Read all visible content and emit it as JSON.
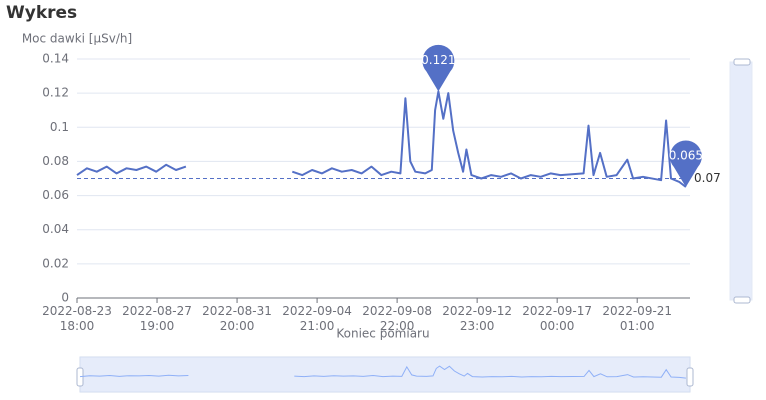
{
  "chart_data": {
    "type": "line",
    "title": "Wykres",
    "y_label": "Moc dawki [µSv/h]",
    "x_label": "Koniec pomiaru",
    "xlim": [
      "2022-08-23 18:00",
      "2022-09-23 17:00"
    ],
    "xticks": [
      "2022-08-23 18:00",
      "2022-08-27 19:00",
      "2022-08-31 20:00",
      "2022-09-04 21:00",
      "2022-09-08 22:00",
      "2022-09-12 23:00",
      "2022-09-17 00:00",
      "2022-09-21 01:00"
    ],
    "ylim": [
      0,
      0.14
    ],
    "yticks": [
      0,
      0.02,
      0.04,
      0.06,
      0.08,
      0.1,
      0.12,
      0.14
    ],
    "grid": true,
    "mark_line": 0.07,
    "x": [
      "2022-08-23 18:00",
      "2022-08-24 06:00",
      "2022-08-24 18:00",
      "2022-08-25 06:00",
      "2022-08-25 18:00",
      "2022-08-26 06:00",
      "2022-08-26 18:00",
      "2022-08-27 06:00",
      "2022-08-27 18:00",
      "2022-08-28 06:00",
      "2022-08-28 18:00",
      "2022-08-29 06:00",
      "2022-08-31 12:00",
      "2022-09-03 15:00",
      "2022-09-04 03:00",
      "2022-09-04 15:00",
      "2022-09-05 03:00",
      "2022-09-05 15:00",
      "2022-09-06 03:00",
      "2022-09-06 15:00",
      "2022-09-07 03:00",
      "2022-09-07 15:00",
      "2022-09-08 03:00",
      "2022-09-08 15:00",
      "2022-09-09 02:00",
      "2022-09-09 08:00",
      "2022-09-09 14:00",
      "2022-09-09 20:00",
      "2022-09-10 08:00",
      "2022-09-10 16:00",
      "2022-09-10 20:00",
      "2022-09-11 00:00",
      "2022-09-11 06:00",
      "2022-09-11 12:00",
      "2022-09-11 18:00",
      "2022-09-12 00:00",
      "2022-09-12 06:00",
      "2022-09-12 10:00",
      "2022-09-12 16:00",
      "2022-09-13 04:00",
      "2022-09-13 16:00",
      "2022-09-14 04:00",
      "2022-09-14 16:00",
      "2022-09-15 04:00",
      "2022-09-15 16:00",
      "2022-09-16 04:00",
      "2022-09-16 16:00",
      "2022-09-17 04:00",
      "2022-09-18 08:00",
      "2022-09-18 14:00",
      "2022-09-18 20:00",
      "2022-09-19 04:00",
      "2022-09-19 12:00",
      "2022-09-20 00:00",
      "2022-09-20 13:00",
      "2022-09-20 20:00",
      "2022-09-21 08:00",
      "2022-09-22 06:00",
      "2022-09-22 12:00",
      "2022-09-22 18:00",
      "2022-09-23 04:00",
      "2022-09-23 12:00"
    ],
    "series": [
      {
        "name": "Moc dawki",
        "color": "#5470c6",
        "values": [
          0.072,
          0.076,
          0.074,
          0.077,
          0.073,
          0.076,
          0.075,
          0.077,
          0.074,
          0.078,
          0.075,
          0.077,
          null,
          0.074,
          0.072,
          0.075,
          0.073,
          0.076,
          0.074,
          0.075,
          0.073,
          0.077,
          0.072,
          0.074,
          0.073,
          0.117,
          0.08,
          0.074,
          0.073,
          0.075,
          0.11,
          0.121,
          0.105,
          0.12,
          0.098,
          0.085,
          0.074,
          0.087,
          0.072,
          0.07,
          0.072,
          0.071,
          0.073,
          0.07,
          0.072,
          0.071,
          0.073,
          0.072,
          0.073,
          0.101,
          0.072,
          0.085,
          0.071,
          0.072,
          0.081,
          0.07,
          0.071,
          0.069,
          0.104,
          0.07,
          0.068,
          0.065
        ]
      }
    ]
  }
}
